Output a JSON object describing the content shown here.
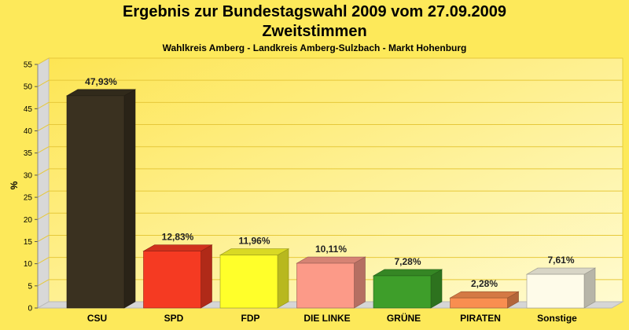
{
  "header": {
    "title": "Ergebnis zur Bundestagswahl 2009 vom 27.09.2009",
    "subtitle": "Zweitstimmen",
    "region": "Wahlkreis Amberg - Landkreis Amberg-Sulzbach - Markt Hohenburg"
  },
  "chart_data": {
    "type": "bar",
    "title": "Ergebnis zur Bundestagswahl 2009 vom 27.09.2009",
    "subtitle": "Zweitstimmen",
    "xlabel": "",
    "ylabel": "%",
    "ylim": [
      0,
      55
    ],
    "yticks": [
      0,
      5,
      10,
      15,
      20,
      25,
      30,
      35,
      40,
      45,
      50,
      55
    ],
    "grid": true,
    "legend": "none",
    "categories": [
      "CSU",
      "SPD",
      "FDP",
      "DIE LINKE",
      "GRÜNE",
      "PIRATEN",
      "Sonstige"
    ],
    "values": [
      47.93,
      12.83,
      11.96,
      10.11,
      7.28,
      2.28,
      7.61
    ],
    "value_labels": [
      "47,93%",
      "12,83%",
      "11,96%",
      "10,11%",
      "7,28%",
      "2,28%",
      "7,61%"
    ],
    "colors": [
      "#3a3120",
      "#f53a22",
      "#ffff2a",
      "#fc9a88",
      "#3e9e2a",
      "#f98e50",
      "#fefbe9"
    ]
  }
}
